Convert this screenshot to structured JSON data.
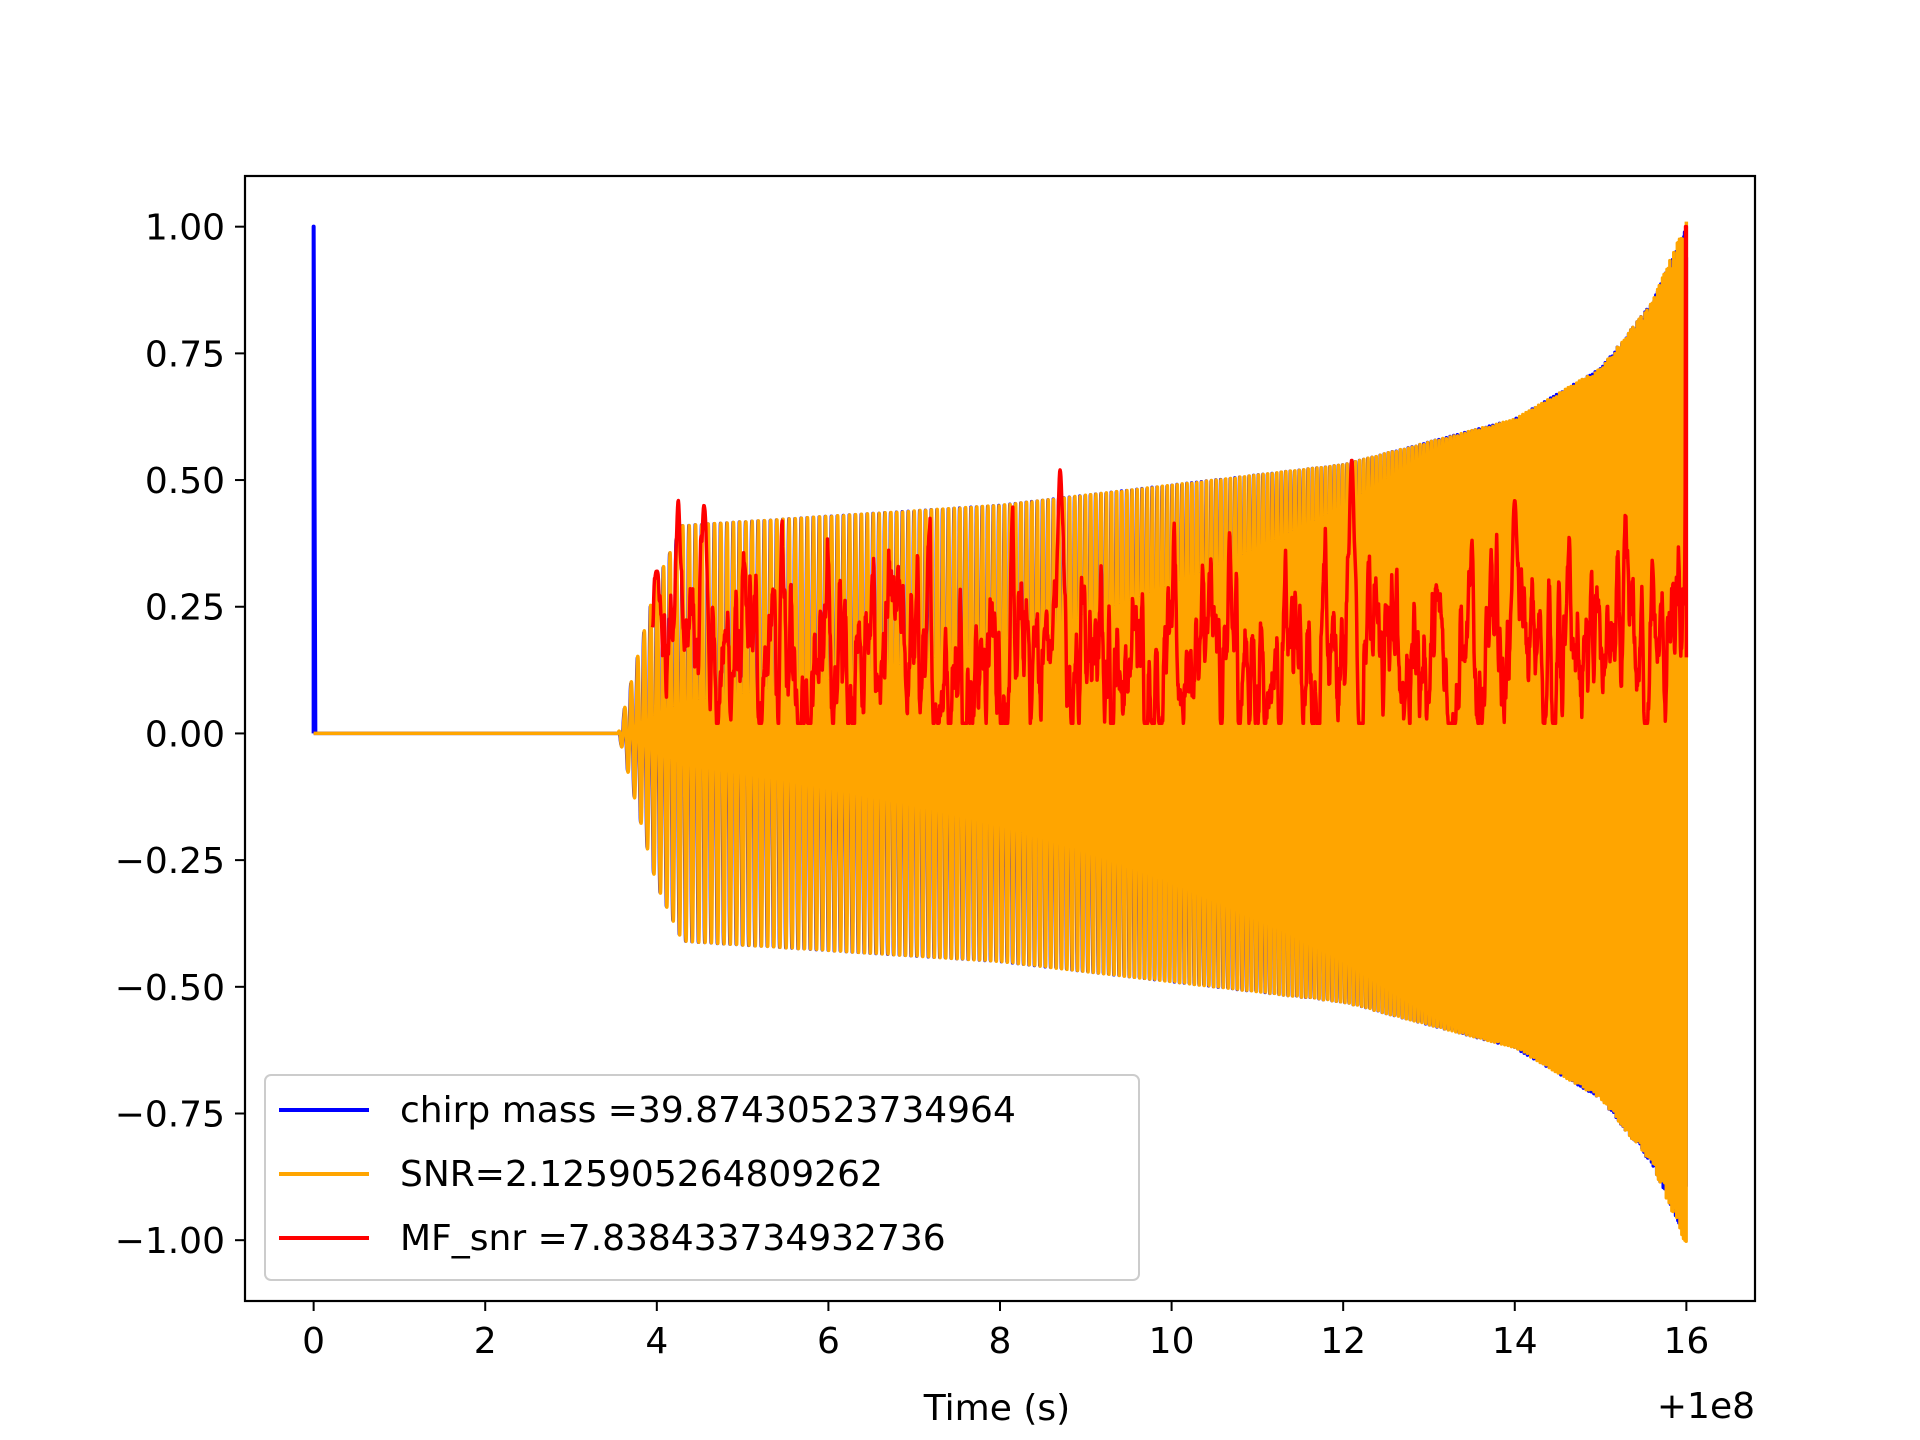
{
  "chart_data": {
    "type": "line",
    "title": "",
    "xlabel": "Time (s)",
    "ylabel": "",
    "x_offset_label": "+1e8",
    "x_offset": 100000000,
    "xlim": [
      -0.8,
      16.8
    ],
    "ylim": [
      -1.12,
      1.1
    ],
    "xticks": [
      0,
      2,
      4,
      6,
      8,
      10,
      12,
      14,
      16
    ],
    "xtick_labels": [
      "0",
      "2",
      "4",
      "6",
      "8",
      "10",
      "12",
      "14",
      "16"
    ],
    "yticks": [
      1.0,
      0.75,
      0.5,
      0.25,
      0.0,
      -0.25,
      -0.5,
      -0.75,
      -1.0
    ],
    "ytick_labels": [
      "1.00",
      "0.75",
      "0.50",
      "0.25",
      "0.00",
      "−0.25",
      "−0.50",
      "−0.75",
      "−1.00"
    ],
    "grid": false,
    "legend_position": "lower-left",
    "series": [
      {
        "name": "chirp mass =39.87430523734964",
        "color": "#0000ff",
        "kind": "chirp",
        "description_points": {
          "spike": {
            "x": 0.0,
            "y": 1.0
          },
          "flat_start": 0.0,
          "flat_end": 3.55,
          "onset_end": 4.3,
          "envelope": [
            [
              3.55,
              0.0
            ],
            [
              4.0,
              0.3
            ],
            [
              4.3,
              0.41
            ],
            [
              8.0,
              0.45
            ],
            [
              12.0,
              0.53
            ],
            [
              14.0,
              0.62
            ],
            [
              15.0,
              0.72
            ],
            [
              15.6,
              0.85
            ],
            [
              16.0,
              1.0
            ]
          ],
          "cycles": 260
        }
      },
      {
        "name": "SNR=2.125905264809262",
        "color": "#ffa500",
        "kind": "chirp",
        "description_points": {
          "flat_start": 0.0,
          "flat_end": 3.55,
          "envelope": [
            [
              3.55,
              0.0
            ],
            [
              4.0,
              0.3
            ],
            [
              4.3,
              0.41
            ],
            [
              8.0,
              0.45
            ],
            [
              12.0,
              0.53
            ],
            [
              14.0,
              0.62
            ],
            [
              15.0,
              0.72
            ],
            [
              15.6,
              0.85
            ],
            [
              16.0,
              1.01
            ]
          ],
          "cycles": 260
        }
      },
      {
        "name": "MF_snr =7.838433734932736",
        "color": "#ff0000",
        "kind": "noise",
        "description_points": {
          "x_start": 3.95,
          "x_end": 16.0,
          "mean": 0.15,
          "min": 0.02,
          "peaks": [
            [
              4.0,
              0.32
            ],
            [
              4.25,
              0.46
            ],
            [
              4.55,
              0.45
            ],
            [
              8.7,
              0.52
            ],
            [
              12.1,
              0.54
            ],
            [
              14.0,
              0.46
            ],
            [
              16.0,
              1.0
            ]
          ]
        }
      }
    ]
  }
}
